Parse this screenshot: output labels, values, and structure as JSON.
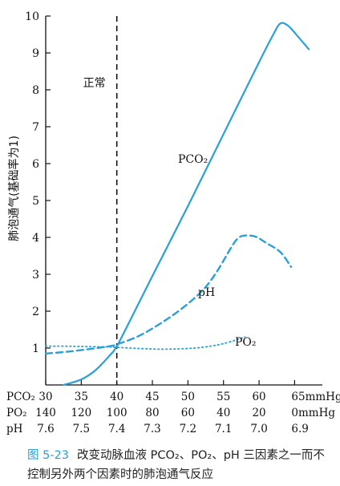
{
  "chart_data": {
    "type": "line",
    "ylabel": "肺泡通气(基础率为1)",
    "ylim": [
      0,
      10
    ],
    "yticks": [
      1,
      2,
      3,
      4,
      5,
      6,
      7,
      8,
      9,
      10
    ],
    "xlim": [
      30,
      65
    ],
    "reference_line": {
      "x": 40,
      "label": "正常",
      "style": "dashed"
    },
    "x_scales": [
      {
        "name": "PCO₂",
        "unit": "mmHg",
        "ticks": [
          "30",
          "35",
          "40",
          "45",
          "50",
          "55",
          "60",
          "65mmHg"
        ]
      },
      {
        "name": "PO₂",
        "unit": "mmHg",
        "ticks": [
          "140",
          "120",
          "100",
          "80",
          "60",
          "40",
          "20",
          "0mmHg"
        ]
      },
      {
        "name": "pH",
        "unit": "",
        "ticks": [
          "7.6",
          "7.5",
          "7.4",
          "7.3",
          "7.2",
          "7.1",
          "7.0",
          "6.9"
        ]
      }
    ],
    "series": [
      {
        "name": "PCO₂",
        "style": "solid",
        "color": "#2a9fd8",
        "x": [
          32.5,
          35,
          37,
          39,
          40,
          42,
          45,
          50,
          55,
          60,
          62,
          63,
          64,
          65,
          67
        ],
        "y": [
          0,
          0.15,
          0.4,
          0.8,
          1.05,
          1.8,
          2.95,
          4.85,
          6.8,
          8.75,
          9.5,
          9.8,
          9.75,
          9.55,
          9.1
        ]
      },
      {
        "name": "pH",
        "style": "dashed",
        "color": "#2a9fd8",
        "x": [
          30,
          33,
          36,
          39,
          40,
          43,
          46,
          49,
          52,
          54,
          56,
          57,
          58,
          59.5,
          61,
          63,
          64.5
        ],
        "y": [
          0.85,
          0.9,
          0.97,
          1.05,
          1.1,
          1.32,
          1.65,
          2.05,
          2.55,
          3.05,
          3.7,
          3.97,
          4.05,
          4.02,
          3.85,
          3.6,
          3.2
        ]
      },
      {
        "name": "PO₂",
        "style": "dotted",
        "color": "#2a9fd8",
        "x": [
          30,
          33,
          36,
          39,
          40,
          43,
          46,
          49,
          52,
          55,
          58
        ],
        "y": [
          1.05,
          1.05,
          1.04,
          1.03,
          1.02,
          0.99,
          0.97,
          0.98,
          1.02,
          1.12,
          1.3
        ]
      }
    ]
  },
  "caption": {
    "figure_number": "图 5-23",
    "text": "改变动脉血液 PCO₂、PO₂、pH 三因素之一而不控制另外两个因素时的肺泡通气反应"
  }
}
